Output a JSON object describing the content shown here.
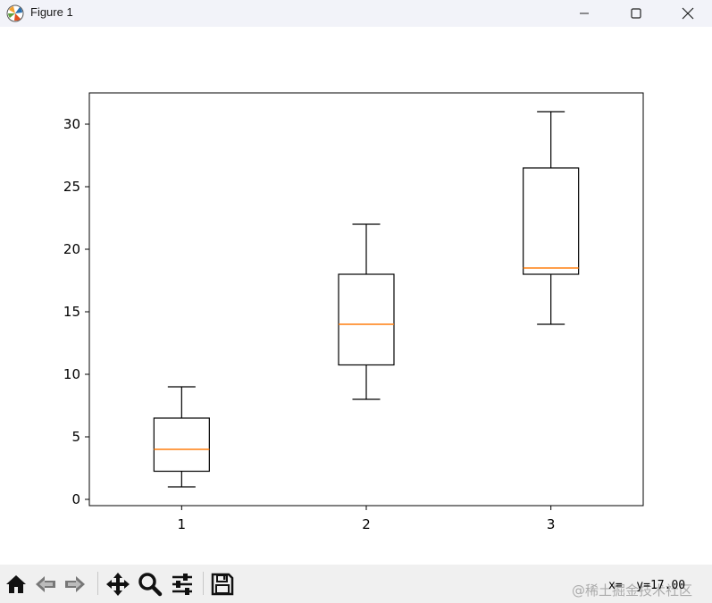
{
  "window": {
    "title": "Figure 1",
    "app_icon": "matplotlib-icon",
    "controls": [
      "minimize-icon",
      "maximize-icon",
      "close-icon"
    ]
  },
  "chart_data": {
    "type": "box",
    "title": "",
    "xlabel": "",
    "ylabel": "",
    "categories": [
      "1",
      "2",
      "3"
    ],
    "boxes": [
      {
        "label": "1",
        "whisker_low": 1,
        "q1": 2.25,
        "median": 4,
        "q3": 6.5,
        "whisker_high": 9
      },
      {
        "label": "2",
        "whisker_low": 8,
        "q1": 10.75,
        "median": 14,
        "q3": 18,
        "whisker_high": 22
      },
      {
        "label": "3",
        "whisker_low": 14,
        "q1": 18,
        "median": 18.5,
        "q3": 26.5,
        "whisker_high": 31
      }
    ],
    "ylim": [
      -0.5,
      32.5
    ],
    "xlim": [
      0.5,
      3.5
    ],
    "yticks": [
      0,
      5,
      10,
      15,
      20,
      25,
      30
    ],
    "grid": false,
    "colors": {
      "box": "#000000",
      "median": "#ff7f0e",
      "background": "#ffffff"
    }
  },
  "toolbar": {
    "buttons": [
      {
        "name": "home-icon"
      },
      {
        "name": "back-icon"
      },
      {
        "name": "forward-icon"
      },
      {
        "name": "pan-icon"
      },
      {
        "name": "zoom-icon"
      },
      {
        "name": "configure-subplots-icon"
      },
      {
        "name": "save-icon"
      }
    ],
    "coordinates": "x=  y=17.00",
    "watermark": "@稀土掘金技术社区"
  }
}
